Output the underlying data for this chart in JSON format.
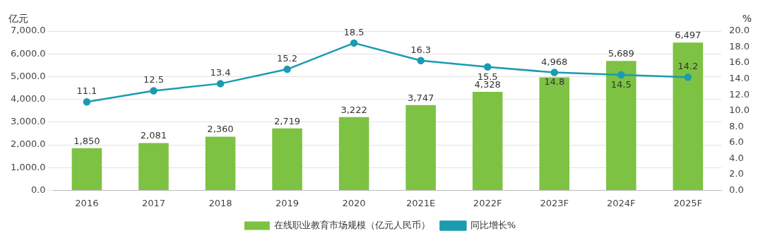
{
  "chart_data": {
    "type": "bar",
    "ylabel": "亿元",
    "y2label": "%",
    "categories": [
      "2016",
      "2017",
      "2018",
      "2019",
      "2020",
      "2021E",
      "2022F",
      "2023F",
      "2024F",
      "2025F"
    ],
    "series": [
      {
        "name": "在线职业教育市场规模（亿元人民币）",
        "color": "#7dc242",
        "values": [
          1850,
          2081,
          2360,
          2719,
          3222,
          3747,
          4328,
          4968,
          5689,
          6497
        ],
        "value_labels": [
          "1,850",
          "2,081",
          "2,360",
          "2,719",
          "3,222",
          "3,747",
          "4,328",
          "4,968",
          "5,689",
          "6,497"
        ]
      },
      {
        "name": "同比增长%",
        "type": "line",
        "axis": "y2",
        "color": "#1a9bb0",
        "values": [
          11.1,
          12.5,
          13.4,
          15.2,
          18.5,
          16.3,
          15.5,
          14.8,
          14.5,
          14.2
        ],
        "value_labels": [
          "11.1",
          "12.5",
          "13.4",
          "15.2",
          "18.5",
          "16.3",
          "15.5",
          "14.8",
          "14.5",
          "14.2"
        ]
      }
    ],
    "ylim": [
      0,
      7000
    ],
    "yticks": [
      {
        "value": 0,
        "label": "0.0"
      },
      {
        "value": 1000,
        "label": "1,000.0"
      },
      {
        "value": 2000,
        "label": "2,000.0"
      },
      {
        "value": 3000,
        "label": "3,000.0"
      },
      {
        "value": 4000,
        "label": "4,000.0"
      },
      {
        "value": 5000,
        "label": "5,000.0"
      },
      {
        "value": 6000,
        "label": "6,000.0"
      },
      {
        "value": 7000,
        "label": "7,000.0"
      }
    ],
    "y2lim": [
      0,
      20
    ],
    "y2ticks": [
      {
        "value": 0,
        "label": "0.0"
      },
      {
        "value": 2,
        "label": "2.0"
      },
      {
        "value": 4,
        "label": "4.0"
      },
      {
        "value": 6,
        "label": "6.0"
      },
      {
        "value": 8,
        "label": "8.0"
      },
      {
        "value": 10,
        "label": "10.0"
      },
      {
        "value": 12,
        "label": "12.0"
      },
      {
        "value": 14,
        "label": "14.0"
      },
      {
        "value": 16,
        "label": "16.0"
      },
      {
        "value": 18,
        "label": "18.0"
      },
      {
        "value": 20,
        "label": "20.0"
      }
    ],
    "grid": "y",
    "legend": "bottom",
    "marker": "circle",
    "line_style": "solid"
  }
}
